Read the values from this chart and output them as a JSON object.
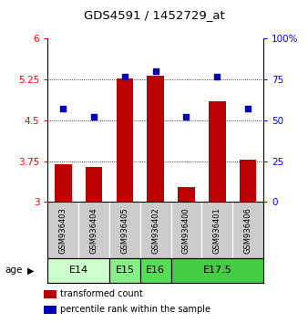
{
  "title": "GDS4591 / 1452729_at",
  "samples": [
    "GSM936403",
    "GSM936404",
    "GSM936405",
    "GSM936402",
    "GSM936400",
    "GSM936401",
    "GSM936406"
  ],
  "bar_values": [
    3.7,
    3.65,
    5.27,
    5.32,
    3.28,
    4.85,
    3.78
  ],
  "percentile_values": [
    57,
    52,
    77,
    80,
    52,
    77,
    57
  ],
  "bar_color": "#bb0000",
  "dot_color": "#0000bb",
  "ylim_left": [
    3,
    6
  ],
  "ylim_right": [
    0,
    100
  ],
  "yticks_left": [
    3,
    3.75,
    4.5,
    5.25,
    6
  ],
  "ytick_labels_left": [
    "3",
    "3.75",
    "4.5",
    "5.25",
    "6"
  ],
  "yticks_right": [
    0,
    25,
    50,
    75,
    100
  ],
  "ytick_labels_right": [
    "0",
    "25",
    "50",
    "75",
    "100%"
  ],
  "age_groups": [
    {
      "label": "E14",
      "samples": [
        "GSM936403",
        "GSM936404"
      ],
      "color": "#ccffcc"
    },
    {
      "label": "E15",
      "samples": [
        "GSM936405"
      ],
      "color": "#88ee88"
    },
    {
      "label": "E16",
      "samples": [
        "GSM936402"
      ],
      "color": "#55dd55"
    },
    {
      "label": "E17.5",
      "samples": [
        "GSM936400",
        "GSM936401",
        "GSM936406"
      ],
      "color": "#44cc44"
    }
  ],
  "age_label": "age",
  "legend_bar_label": "transformed count",
  "legend_dot_label": "percentile rank within the sample",
  "sample_bg_color": "#cccccc",
  "bar_width": 0.55
}
